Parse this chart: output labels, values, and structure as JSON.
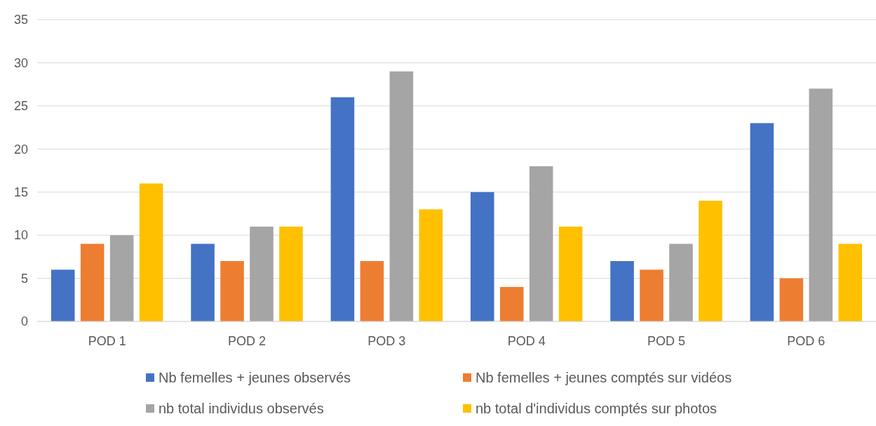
{
  "chart_data": {
    "type": "bar",
    "categories": [
      "POD 1",
      "POD 2",
      "POD 3",
      "POD 4",
      "POD 5",
      "POD 6"
    ],
    "series": [
      {
        "name": "Nb femelles + jeunes observés",
        "color": "#4472c4",
        "values": [
          6,
          9,
          26,
          15,
          7,
          23
        ]
      },
      {
        "name": "Nb femelles + jeunes comptés sur vidéos",
        "color": "#ed7d31",
        "values": [
          9,
          7,
          7,
          4,
          6,
          5
        ]
      },
      {
        "name": "nb total individus observés",
        "color": "#a5a5a5",
        "values": [
          10,
          11,
          29,
          18,
          9,
          27
        ]
      },
      {
        "name": "nb total d'individus comptés sur photos",
        "color": "#ffc000",
        "values": [
          16,
          11,
          13,
          11,
          14,
          9
        ]
      }
    ],
    "ylim": [
      0,
      35
    ],
    "yticks": [
      0,
      5,
      10,
      15,
      20,
      25,
      30,
      35
    ],
    "grid": "y",
    "legend": "bottom"
  }
}
